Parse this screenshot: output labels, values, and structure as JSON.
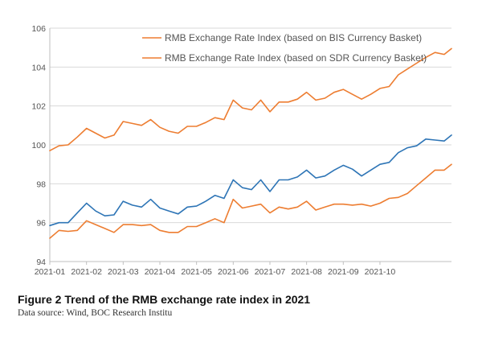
{
  "chart_data": {
    "type": "line",
    "title": "",
    "xlabel": "",
    "ylabel": "",
    "ylim": [
      94,
      106
    ],
    "y_ticks": [
      "94",
      "96",
      "98",
      "100",
      "102",
      "104",
      "106"
    ],
    "x_tick_labels": [
      "2021-01",
      "2021-02",
      "2021-03",
      "2021-04",
      "2021-05",
      "2021-06",
      "2021-07",
      "2021-08",
      "2021-09",
      "2021-10"
    ],
    "grid": "horizontal",
    "legend_position": "top-right",
    "colors": {
      "series": [
        "#ed7d31",
        "#ed7d31",
        "#2e75b6"
      ],
      "grid": "#d9d9d9",
      "axis": "#bfbfbf"
    },
    "x": [
      0,
      0.25,
      0.5,
      0.75,
      1,
      1.25,
      1.5,
      1.75,
      2,
      2.25,
      2.5,
      2.75,
      3,
      3.25,
      3.5,
      3.75,
      4,
      4.25,
      4.5,
      4.75,
      5,
      5.25,
      5.5,
      5.75,
      6,
      6.25,
      6.5,
      6.75,
      7,
      7.25,
      7.5,
      7.75,
      8,
      8.25,
      8.5,
      8.75,
      9,
      9.25,
      9.5,
      9.75,
      10,
      10.25,
      10.5,
      10.75,
      10.95
    ],
    "series": [
      {
        "name": "RMB Exchange Rate Index (based on BIS Currency Basket)",
        "values": [
          99.7,
          99.95,
          100.0,
          100.4,
          100.85,
          100.6,
          100.35,
          100.5,
          101.2,
          101.1,
          101.0,
          101.3,
          100.9,
          100.7,
          100.6,
          100.95,
          100.95,
          101.15,
          101.4,
          101.3,
          102.3,
          101.9,
          101.8,
          102.3,
          101.7,
          102.2,
          102.2,
          102.35,
          102.7,
          102.3,
          102.4,
          102.7,
          102.85,
          102.6,
          102.35,
          102.6,
          102.9,
          103.0,
          103.6,
          103.9,
          104.2,
          104.5,
          104.75,
          104.65,
          104.95
        ]
      },
      {
        "name": "RMB Exchange Rate Index (based on SDR Currency Basket)",
        "values": [
          95.2,
          95.6,
          95.55,
          95.6,
          96.1,
          95.9,
          95.7,
          95.5,
          95.9,
          95.9,
          95.85,
          95.9,
          95.6,
          95.5,
          95.5,
          95.8,
          95.8,
          96.0,
          96.2,
          96.0,
          97.2,
          96.75,
          96.85,
          96.95,
          96.5,
          96.8,
          96.7,
          96.8,
          97.1,
          96.65,
          96.8,
          96.95,
          96.95,
          96.9,
          96.95,
          96.85,
          97.0,
          97.25,
          97.3,
          97.5,
          97.9,
          98.3,
          98.7,
          98.7,
          99.0
        ]
      },
      {
        "name": "",
        "values": [
          95.85,
          96.0,
          96.0,
          96.5,
          97.0,
          96.6,
          96.35,
          96.4,
          97.1,
          96.9,
          96.8,
          97.2,
          96.75,
          96.6,
          96.45,
          96.8,
          96.85,
          97.1,
          97.4,
          97.25,
          98.2,
          97.8,
          97.7,
          98.2,
          97.6,
          98.2,
          98.2,
          98.35,
          98.7,
          98.3,
          98.4,
          98.7,
          98.95,
          98.75,
          98.4,
          98.7,
          99.0,
          99.1,
          99.6,
          99.85,
          99.95,
          100.3,
          100.25,
          100.2,
          100.5
        ]
      }
    ]
  },
  "caption": {
    "title": "Figure 2 Trend of the RMB exchange rate index in 2021",
    "source": "Data source: Wind, BOC Research Institu"
  }
}
